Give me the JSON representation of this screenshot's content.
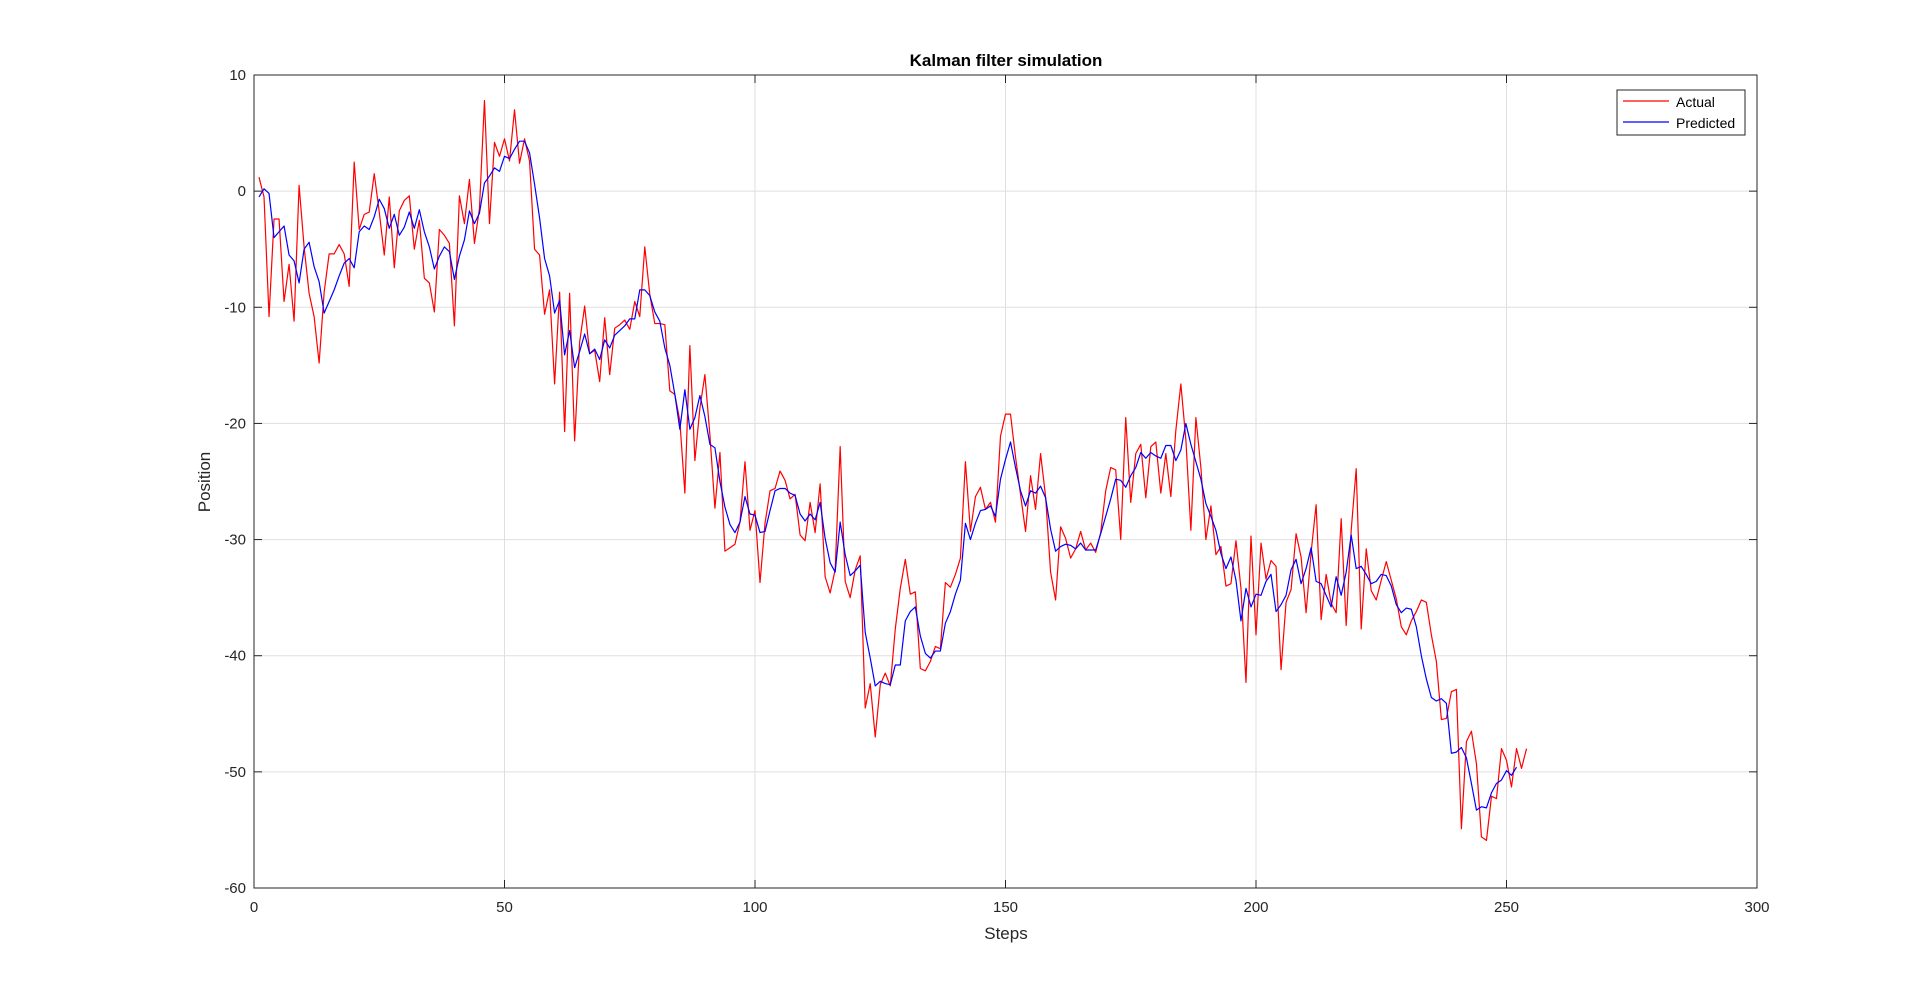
{
  "chart_data": {
    "type": "line",
    "title": "Kalman filter simulation",
    "xlabel": "Steps",
    "ylabel": "Position",
    "xlim": [
      0,
      300
    ],
    "ylim": [
      -60,
      10
    ],
    "xticks": [
      0,
      50,
      100,
      150,
      200,
      250,
      300
    ],
    "yticks": [
      10,
      0,
      -10,
      -20,
      -30,
      -40,
      -50,
      -60
    ],
    "xtick_labels": [
      "0",
      "50",
      "100",
      "150",
      "200",
      "250",
      "300"
    ],
    "ytick_labels": [
      "10",
      "0",
      "-10",
      "-20",
      "-30",
      "-40",
      "-50",
      "-60"
    ],
    "grid": true,
    "legend_position": "top-right",
    "series": [
      {
        "name": "Actual",
        "color": "#ff0000",
        "x_start": 1,
        "x_step": 1,
        "values": [
          1.2,
          -0.5,
          -10.8,
          -2.4,
          -2.4,
          -9.5,
          -6.3,
          -11.2,
          0.5,
          -4.8,
          -8.8,
          -10.8,
          -14.8,
          -8.7,
          -5.4,
          -5.4,
          -4.6,
          -5.4,
          -8.2,
          2.5,
          -3.3,
          -2.0,
          -1.8,
          1.5,
          -1.8,
          -5.5,
          -0.5,
          -6.6,
          -1.7,
          -0.8,
          -0.4,
          -5.0,
          -2.5,
          -7.5,
          -7.9,
          -10.4,
          -3.3,
          -3.8,
          -4.5,
          -11.6,
          -0.4,
          -2.8,
          1.0,
          -4.5,
          -1.5,
          7.8,
          -2.8,
          4.2,
          3.0,
          4.5,
          2.6,
          7.0,
          2.4,
          4.5,
          2.6,
          -5.0,
          -5.5,
          -10.6,
          -8.5,
          -16.6,
          -8.7,
          -20.7,
          -8.8,
          -21.5,
          -13.0,
          -9.9,
          -14.0,
          -13.7,
          -16.4,
          -10.9,
          -15.8,
          -11.8,
          -11.5,
          -11.1,
          -11.9,
          -9.5,
          -10.8,
          -4.8,
          -8.9,
          -11.4,
          -11.4,
          -11.5,
          -17.2,
          -17.5,
          -19.8,
          -26.0,
          -13.3,
          -23.2,
          -18.7,
          -15.8,
          -21.0,
          -27.3,
          -22.5,
          -31.0,
          -30.7,
          -30.4,
          -28.5,
          -23.3,
          -29.2,
          -27.5,
          -33.7,
          -28.6,
          -25.8,
          -25.6,
          -24.1,
          -24.9,
          -26.5,
          -26.1,
          -29.6,
          -30.1,
          -26.8,
          -29.4,
          -25.2,
          -33.2,
          -34.6,
          -32.6,
          -22.0,
          -33.6,
          -35.0,
          -32.6,
          -31.4,
          -44.5,
          -42.4,
          -47.0,
          -42.5,
          -41.5,
          -42.6,
          -37.7,
          -34.2,
          -31.7,
          -34.7,
          -34.5,
          -41.1,
          -41.3,
          -40.5,
          -39.2,
          -39.4,
          -33.7,
          -34.1,
          -33.0,
          -31.6,
          -23.3,
          -29.3,
          -26.3,
          -25.5,
          -27.4,
          -26.8,
          -28.5,
          -21.1,
          -19.2,
          -19.2,
          -22.9,
          -26.1,
          -29.3,
          -24.5,
          -27.4,
          -22.6,
          -26.3,
          -32.8,
          -35.2,
          -28.9,
          -29.9,
          -31.6,
          -30.8,
          -29.3,
          -30.9,
          -30.3,
          -31.1,
          -29.4,
          -25.8,
          -23.8,
          -24.0,
          -30.0,
          -19.5,
          -26.8,
          -22.6,
          -21.8,
          -26.4,
          -22.0,
          -21.6,
          -26.0,
          -22.6,
          -26.3,
          -20.6,
          -16.6,
          -21.4,
          -29.2,
          -19.5,
          -23.8,
          -30.0,
          -27.1,
          -31.3,
          -30.6,
          -34.0,
          -33.8,
          -30.1,
          -34.2,
          -42.3,
          -29.7,
          -38.2,
          -30.3,
          -33.4,
          -31.8,
          -32.3,
          -41.2,
          -35.4,
          -34.3,
          -29.5,
          -31.5,
          -36.3,
          -31.1,
          -27.0,
          -36.9,
          -33.0,
          -35.5,
          -36.3,
          -28.2,
          -37.4,
          -29.2,
          -23.9,
          -37.7,
          -30.8,
          -34.4,
          -35.2,
          -33.5,
          -31.9,
          -33.5,
          -35.1,
          -37.5,
          -38.2,
          -37.0,
          -36.2,
          -35.2,
          -35.4,
          -38.2,
          -40.5,
          -45.5,
          -45.4,
          -43.1,
          -42.9,
          -54.9,
          -47.4,
          -46.5,
          -49.3,
          -55.6,
          -55.9,
          -52.1,
          -52.3,
          -48.0,
          -49.0,
          -51.3,
          -48.0,
          -49.7,
          -48.0
        ]
      },
      {
        "name": "Predicted",
        "color": "#0000ff",
        "x_start": 1,
        "x_step": 1,
        "values": [
          -0.5,
          0.2,
          -0.2,
          -4.0,
          -3.5,
          -3.0,
          -5.5,
          -6.0,
          -7.9,
          -5.0,
          -4.4,
          -6.5,
          -7.8,
          -10.5,
          -9.5,
          -8.5,
          -7.3,
          -6.2,
          -5.8,
          -6.6,
          -3.5,
          -3.0,
          -3.3,
          -2.2,
          -0.7,
          -1.5,
          -3.2,
          -2.0,
          -3.8,
          -3.1,
          -1.8,
          -3.2,
          -1.6,
          -3.5,
          -4.8,
          -6.7,
          -5.6,
          -4.8,
          -5.2,
          -7.6,
          -5.6,
          -4.2,
          -1.7,
          -2.8,
          -1.9,
          0.7,
          1.3,
          2.0,
          1.7,
          3.0,
          2.8,
          3.6,
          4.3,
          4.3,
          3.3,
          0.6,
          -2.3,
          -5.8,
          -7.3,
          -10.5,
          -9.4,
          -14.1,
          -12.0,
          -15.2,
          -13.8,
          -12.3,
          -14.0,
          -13.6,
          -14.5,
          -12.8,
          -13.5,
          -12.4,
          -12.0,
          -11.6,
          -11.0,
          -11.0,
          -8.5,
          -8.5,
          -9.0,
          -10.4,
          -11.2,
          -13.5,
          -15.0,
          -17.5,
          -20.5,
          -17.1,
          -20.5,
          -19.5,
          -17.6,
          -19.4,
          -21.8,
          -22.1,
          -25.0,
          -27.2,
          -28.7,
          -29.4,
          -28.5,
          -26.3,
          -27.8,
          -27.9,
          -29.4,
          -29.3,
          -27.5,
          -25.8,
          -25.6,
          -25.6,
          -26.0,
          -26.2,
          -27.8,
          -28.4,
          -27.8,
          -28.3,
          -26.8,
          -29.9,
          -32.0,
          -32.8,
          -28.5,
          -31.3,
          -33.1,
          -32.7,
          -32.2,
          -38.0,
          -40.2,
          -42.6,
          -42.2,
          -42.4,
          -42.5,
          -40.8,
          -40.8,
          -37.0,
          -36.2,
          -35.8,
          -38.3,
          -39.8,
          -40.2,
          -39.6,
          -39.6,
          -37.2,
          -36.2,
          -34.7,
          -33.5,
          -28.6,
          -30.0,
          -28.6,
          -27.5,
          -27.4,
          -27.1,
          -28.0,
          -24.8,
          -23.1,
          -21.6,
          -23.8,
          -25.8,
          -27.1,
          -25.8,
          -26.0,
          -25.4,
          -26.4,
          -29.1,
          -31.0,
          -30.6,
          -30.4,
          -30.5,
          -30.8,
          -30.3,
          -30.9,
          -30.9,
          -30.9,
          -29.5,
          -28.0,
          -26.5,
          -24.8,
          -24.9,
          -25.5,
          -24.5,
          -23.8,
          -22.5,
          -23.0,
          -22.5,
          -22.8,
          -23.0,
          -21.9,
          -21.9,
          -23.2,
          -22.3,
          -20.0,
          -21.8,
          -23.3,
          -24.8,
          -26.9,
          -28.0,
          -29.2,
          -31.2,
          -32.5,
          -31.5,
          -33.5,
          -37.0,
          -34.2,
          -35.8,
          -34.7,
          -34.8,
          -33.6,
          -33.0,
          -36.2,
          -35.6,
          -34.8,
          -32.6,
          -31.7,
          -33.8,
          -32.5,
          -30.7,
          -33.6,
          -33.8,
          -34.8,
          -35.8,
          -33.2,
          -34.8,
          -32.8,
          -29.6,
          -32.5,
          -32.3,
          -33.0,
          -33.8,
          -33.6,
          -33.0,
          -33.1,
          -34.0,
          -35.6,
          -36.3,
          -35.9,
          -36.0,
          -37.5,
          -40.0,
          -42.0,
          -43.6,
          -43.9,
          -43.7,
          -44.1,
          -48.4,
          -48.3,
          -47.9,
          -48.8,
          -51.0,
          -53.3,
          -53.0,
          -53.1,
          -51.8,
          -51.0,
          -50.7,
          -49.9,
          -50.3,
          -49.6
        ]
      }
    ]
  }
}
